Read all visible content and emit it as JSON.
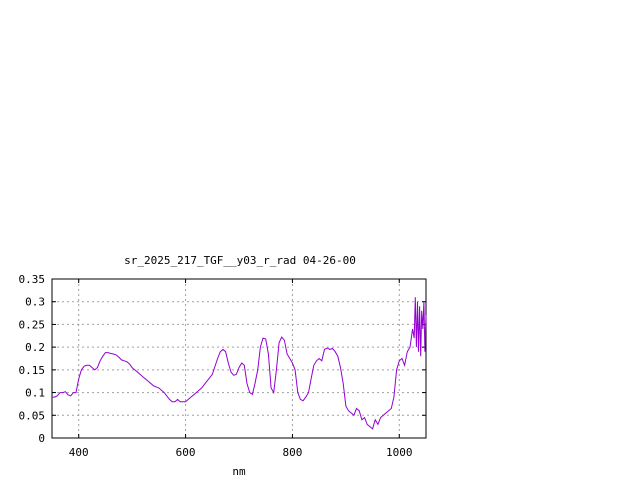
{
  "chart_data": {
    "type": "line",
    "title": "sr_2025_217_TGF__y03_r_rad 04-26-00",
    "xlabel": "nm",
    "ylabel": "",
    "xlim": [
      350,
      1050
    ],
    "ylim": [
      0,
      0.35
    ],
    "x_ticks": [
      {
        "value": 400,
        "label": "400"
      },
      {
        "value": 600,
        "label": "600"
      },
      {
        "value": 800,
        "label": "800"
      },
      {
        "value": 1000,
        "label": "1000"
      }
    ],
    "y_ticks": [
      {
        "value": 0,
        "label": "0"
      },
      {
        "value": 0.05,
        "label": "0.05"
      },
      {
        "value": 0.1,
        "label": "0.1"
      },
      {
        "value": 0.15,
        "label": "0.15"
      },
      {
        "value": 0.2,
        "label": "0.2"
      },
      {
        "value": 0.25,
        "label": "0.25"
      },
      {
        "value": 0.3,
        "label": "0.3"
      },
      {
        "value": 0.35,
        "label": "0.35"
      }
    ],
    "grid": true,
    "legend": "none",
    "series_color": "#9400d3",
    "series": [
      {
        "x": [
          350,
          355,
          360,
          365,
          370,
          375,
          380,
          385,
          390,
          395,
          400,
          405,
          410,
          415,
          420,
          425,
          430,
          435,
          440,
          445,
          450,
          455,
          460,
          465,
          470,
          475,
          480,
          485,
          490,
          495,
          500,
          510,
          520,
          530,
          540,
          550,
          560,
          570,
          575,
          580,
          585,
          590,
          595,
          600,
          610,
          620,
          630,
          640,
          650,
          660,
          665,
          670,
          675,
          680,
          685,
          690,
          695,
          700,
          705,
          710,
          715,
          720,
          725,
          730,
          735,
          740,
          745,
          750,
          755,
          760,
          765,
          770,
          775,
          780,
          785,
          790,
          795,
          800,
          805,
          810,
          815,
          820,
          825,
          830,
          835,
          840,
          845,
          850,
          855,
          860,
          865,
          870,
          875,
          880,
          885,
          890,
          895,
          900,
          905,
          910,
          915,
          920,
          925,
          930,
          935,
          940,
          945,
          950,
          955,
          960,
          965,
          970,
          975,
          980,
          985,
          990,
          995,
          1000,
          1005,
          1010,
          1015,
          1020,
          1025,
          1028,
          1030,
          1032,
          1034,
          1036,
          1038,
          1040,
          1042,
          1044,
          1046,
          1048,
          1050
        ],
        "y": [
          0.09,
          0.09,
          0.093,
          0.1,
          0.1,
          0.102,
          0.095,
          0.093,
          0.1,
          0.1,
          0.13,
          0.15,
          0.158,
          0.16,
          0.16,
          0.155,
          0.15,
          0.155,
          0.17,
          0.18,
          0.188,
          0.188,
          0.186,
          0.185,
          0.183,
          0.178,
          0.172,
          0.17,
          0.168,
          0.163,
          0.155,
          0.145,
          0.135,
          0.125,
          0.115,
          0.11,
          0.1,
          0.085,
          0.08,
          0.08,
          0.085,
          0.08,
          0.08,
          0.08,
          0.09,
          0.1,
          0.11,
          0.125,
          0.14,
          0.175,
          0.19,
          0.195,
          0.19,
          0.165,
          0.145,
          0.138,
          0.14,
          0.155,
          0.165,
          0.16,
          0.12,
          0.1,
          0.096,
          0.12,
          0.15,
          0.2,
          0.22,
          0.218,
          0.185,
          0.11,
          0.1,
          0.15,
          0.21,
          0.222,
          0.215,
          0.185,
          0.175,
          0.165,
          0.15,
          0.1,
          0.085,
          0.082,
          0.09,
          0.1,
          0.13,
          0.16,
          0.17,
          0.175,
          0.17,
          0.195,
          0.198,
          0.195,
          0.197,
          0.19,
          0.18,
          0.155,
          0.12,
          0.07,
          0.06,
          0.055,
          0.05,
          0.065,
          0.06,
          0.04,
          0.045,
          0.03,
          0.025,
          0.02,
          0.04,
          0.03,
          0.045,
          0.05,
          0.055,
          0.06,
          0.065,
          0.09,
          0.15,
          0.17,
          0.175,
          0.16,
          0.19,
          0.2,
          0.24,
          0.22,
          0.31,
          0.2,
          0.3,
          0.19,
          0.29,
          0.18,
          0.28,
          0.24,
          0.3,
          0.19,
          0.27
        ]
      }
    ]
  }
}
